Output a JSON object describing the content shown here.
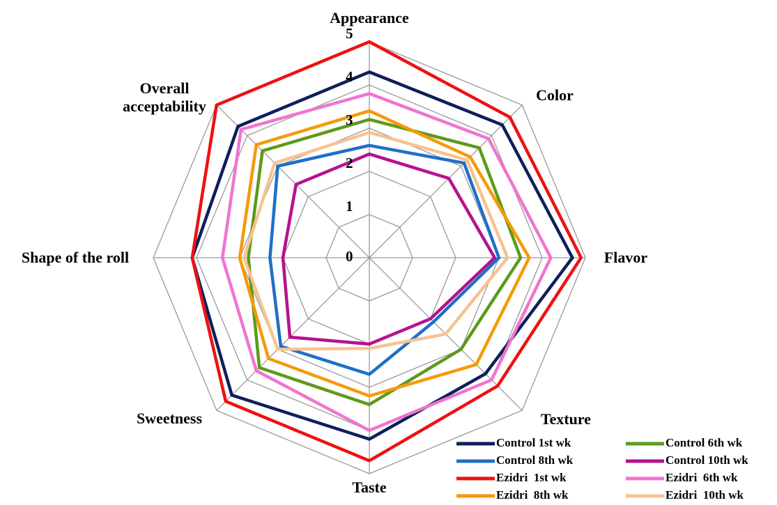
{
  "chart_data": {
    "type": "radar",
    "categories": [
      "Appearance",
      "Color",
      "Flavor",
      "Texture",
      "Taste",
      "Sweetness",
      "Shape of the roll",
      "Overall acceptability"
    ],
    "ylim": [
      0,
      5
    ],
    "yticks": [
      0,
      1,
      2,
      3,
      4,
      5
    ],
    "grid": true,
    "series": [
      {
        "name": "Control 1st wk",
        "color": "#0d1f5c",
        "values": [
          4.3,
          4.35,
          4.7,
          3.8,
          4.2,
          4.5,
          4.1,
          4.3
        ]
      },
      {
        "name": "Control 6th wk",
        "color": "#5e9a1a",
        "values": [
          3.2,
          3.6,
          3.5,
          3.0,
          3.4,
          3.6,
          2.8,
          3.5
        ]
      },
      {
        "name": "Control 8th wk",
        "color": "#1f6fc8",
        "values": [
          2.6,
          3.1,
          3.0,
          2.1,
          2.7,
          2.9,
          2.3,
          3.0
        ]
      },
      {
        "name": "Control 10th wk",
        "color": "#b5128f",
        "values": [
          2.4,
          2.6,
          2.9,
          2.0,
          2.0,
          2.6,
          2.0,
          2.4
        ]
      },
      {
        "name": "Ezidri  1st wk",
        "color": "#ee1111",
        "values": [
          5.0,
          4.6,
          4.9,
          4.2,
          4.7,
          4.7,
          4.1,
          5.0
        ]
      },
      {
        "name": "Ezidri  6th wk",
        "color": "#f074cf",
        "values": [
          3.8,
          3.9,
          4.2,
          4.0,
          4.0,
          3.7,
          3.4,
          4.2
        ]
      },
      {
        "name": "Ezidri  8th wk",
        "color": "#f59a0a",
        "values": [
          3.4,
          3.3,
          3.7,
          3.5,
          3.2,
          3.3,
          3.0,
          3.7
        ]
      },
      {
        "name": "Ezidri  10th wk",
        "color": "#f7c291",
        "values": [
          2.9,
          3.2,
          3.2,
          2.5,
          2.1,
          3.0,
          2.9,
          3.1
        ]
      }
    ]
  }
}
